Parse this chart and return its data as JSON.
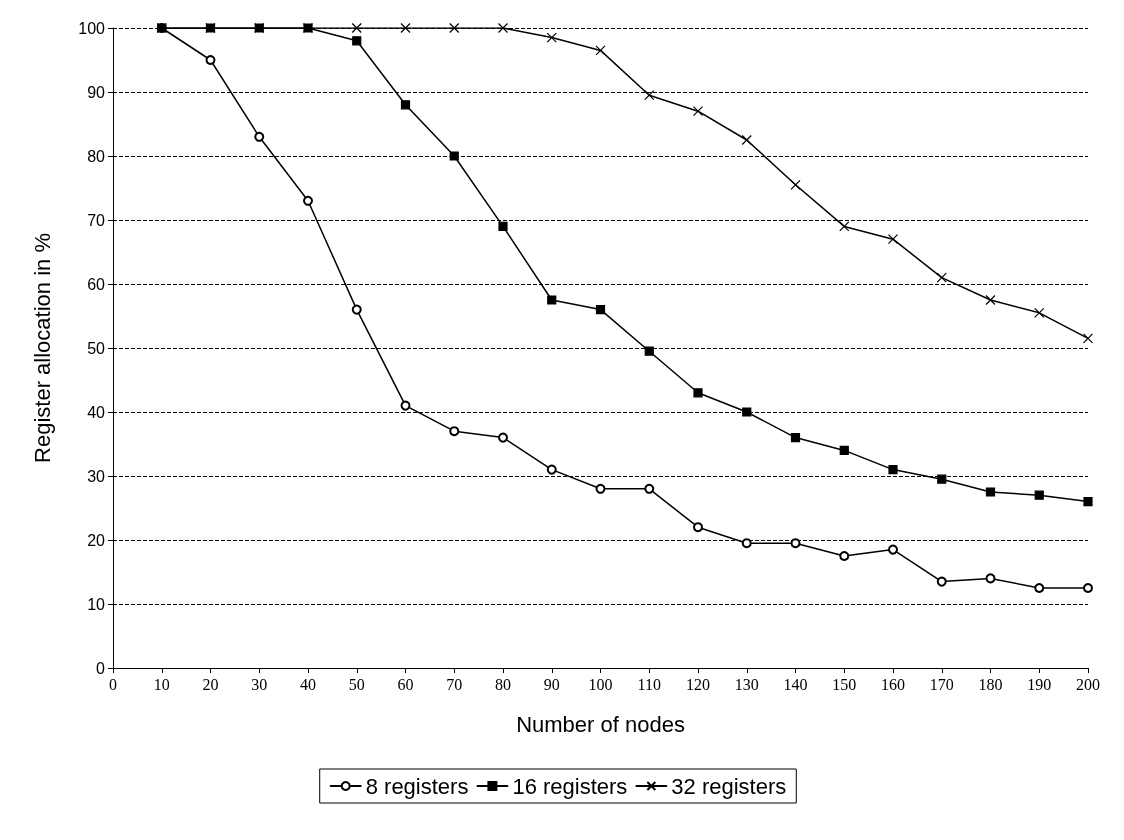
{
  "chart_data": {
    "type": "line",
    "xlabel": "Number of nodes",
    "ylabel": "Register allocation in %",
    "x": [
      10,
      20,
      30,
      40,
      50,
      60,
      70,
      80,
      90,
      100,
      110,
      120,
      130,
      140,
      150,
      160,
      170,
      180,
      190,
      200
    ],
    "series": [
      {
        "name": "8 registers",
        "color": "#000000",
        "marker": "circle",
        "values": [
          100,
          95,
          83,
          73,
          56,
          41,
          37,
          36,
          31,
          28,
          28,
          22,
          19.5,
          19.5,
          17.5,
          18.5,
          13.5,
          14,
          12.5,
          12.5
        ]
      },
      {
        "name": "16 registers",
        "color": "#000000",
        "marker": "square",
        "values": [
          100,
          100,
          100,
          100,
          98,
          88,
          80,
          69,
          57.5,
          56,
          49.5,
          43,
          40,
          36,
          34,
          31,
          29.5,
          27.5,
          27,
          26
        ]
      },
      {
        "name": "32 registers",
        "color": "#000000",
        "marker": "cross",
        "values": [
          100,
          100,
          100,
          100,
          100,
          100,
          100,
          100,
          98.5,
          96.5,
          89.5,
          87,
          82.5,
          75.5,
          69,
          67,
          61,
          57.5,
          55.5,
          51.5
        ]
      }
    ],
    "xlim": [
      0,
      200
    ],
    "xticks": [
      0,
      10,
      20,
      30,
      40,
      50,
      60,
      70,
      80,
      90,
      100,
      110,
      120,
      130,
      140,
      150,
      160,
      170,
      180,
      190,
      200
    ],
    "ylim": [
      0,
      100
    ],
    "yticks": [
      0,
      10,
      20,
      30,
      40,
      50,
      60,
      70,
      80,
      90,
      100
    ],
    "grid": "y",
    "legend": "bottom",
    "line_style": "solid"
  }
}
